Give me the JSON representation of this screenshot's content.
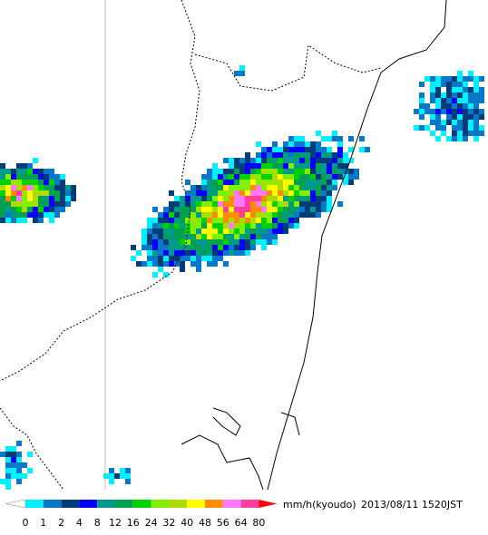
{
  "legend": {
    "unit": "mm/h(kyoudo)",
    "timestamp": "2013/08/11 1520JST",
    "levels": [
      0,
      1,
      2,
      4,
      8,
      12,
      16,
      24,
      32,
      40,
      48,
      56,
      64,
      80
    ],
    "under_color": "#ffffff",
    "colors": [
      "#00f0ff",
      "#0a78c8",
      "#003c78",
      "#0000ff",
      "#009a8a",
      "#00a050",
      "#00d200",
      "#80f000",
      "#aadc00",
      "#ffff00",
      "#ff8c00",
      "#ff78ff",
      "#ff3ca0"
    ],
    "over_color": "#ff0000"
  }
}
